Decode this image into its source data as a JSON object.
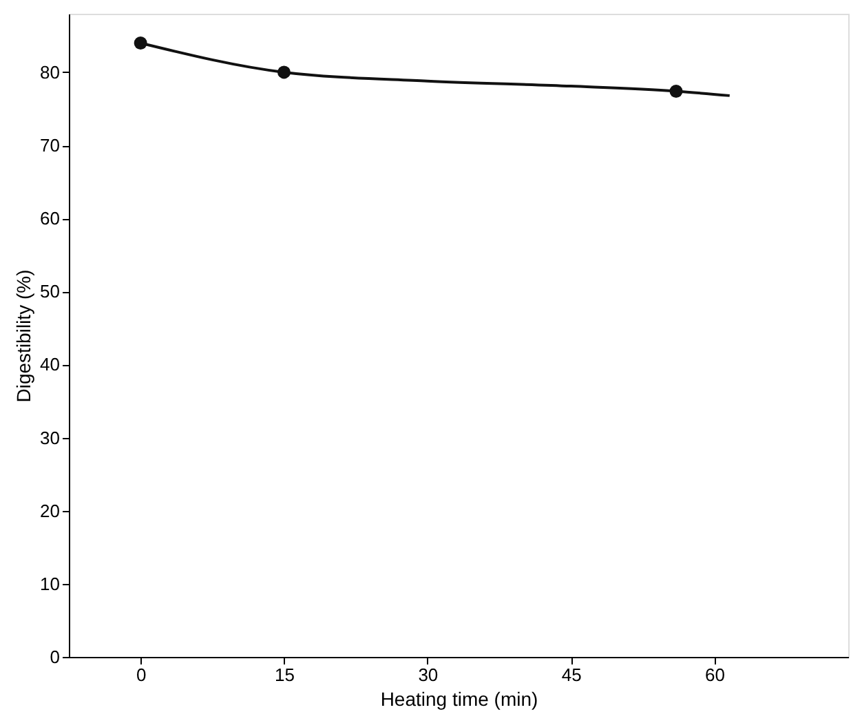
{
  "chart_data": {
    "type": "line",
    "xlabel": "Heating time (min)",
    "ylabel": "Digestibility (%)",
    "xlim": [
      -7.5,
      74
    ],
    "xticks": [
      0,
      15,
      30,
      45,
      60
    ],
    "ylim": [
      0,
      88
    ],
    "yticks": [
      0,
      10,
      20,
      30,
      40,
      50,
      60,
      70,
      80
    ],
    "grid": false,
    "series": [
      {
        "type": "line",
        "color": "#111111",
        "marker": "none",
        "line_style": "solid",
        "x": [
          0,
          15,
          30,
          45,
          56,
          61.6
        ],
        "values": [
          84,
          80,
          78.8,
          78.1,
          77.4,
          76.8
        ]
      },
      {
        "type": "scatter",
        "color": "#111111",
        "marker": "circle",
        "x": [
          0,
          15,
          56
        ],
        "values": [
          84,
          80,
          77.4
        ]
      }
    ]
  }
}
